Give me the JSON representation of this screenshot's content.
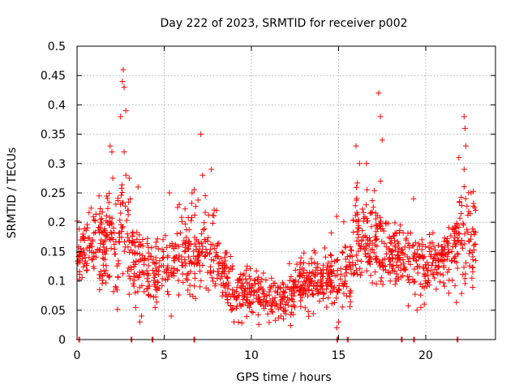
{
  "chart_data": {
    "type": "scatter",
    "title": "Day 222 of 2023, SRMTID for receiver p002",
    "xlabel": "GPS time / hours",
    "ylabel": "SRMTID / TECUs",
    "xlim": [
      0,
      24
    ],
    "ylim": [
      0,
      0.5
    ],
    "x_ticks": [
      0,
      5,
      10,
      15,
      20
    ],
    "x_tick_labels": [
      "0",
      "5",
      "10",
      "15",
      "20"
    ],
    "y_ticks": [
      0,
      0.05,
      0.1,
      0.15,
      0.2,
      0.25,
      0.3,
      0.35,
      0.4,
      0.45,
      0.5
    ],
    "y_tick_labels": [
      "0",
      "0.05",
      "0.1",
      "0.15",
      "0.2",
      "0.25",
      "0.3",
      "0.35",
      "0.4",
      "0.45",
      "0.5"
    ],
    "grid": true,
    "marker": "+",
    "marker_color": "#ff0000",
    "series": [
      {
        "name": "SRMTID",
        "envelope": {
          "hours": [
            0,
            0.5,
            1,
            1.5,
            2,
            2.5,
            3,
            3.5,
            4,
            4.5,
            5,
            5.5,
            6,
            6.5,
            7,
            7.5,
            8,
            8.5,
            9,
            9.5,
            10,
            10.5,
            11,
            11.5,
            12,
            12.5,
            13,
            13.5,
            14,
            14.5,
            15,
            15.5,
            16,
            16.5,
            17,
            17.5,
            18,
            18.5,
            19,
            19.5,
            20,
            20.5,
            21,
            21.5,
            22,
            22.5,
            23
          ],
          "center": [
            0.14,
            0.15,
            0.15,
            0.16,
            0.18,
            0.17,
            0.16,
            0.14,
            0.12,
            0.12,
            0.13,
            0.13,
            0.14,
            0.15,
            0.16,
            0.14,
            0.13,
            0.11,
            0.08,
            0.08,
            0.09,
            0.08,
            0.07,
            0.07,
            0.07,
            0.09,
            0.1,
            0.1,
            0.1,
            0.11,
            0.1,
            0.12,
            0.17,
            0.18,
            0.16,
            0.15,
            0.14,
            0.14,
            0.13,
            0.13,
            0.12,
            0.13,
            0.13,
            0.14,
            0.17,
            0.18,
            0.17
          ],
          "spread": [
            0.05,
            0.05,
            0.06,
            0.07,
            0.08,
            0.09,
            0.08,
            0.06,
            0.05,
            0.05,
            0.05,
            0.05,
            0.06,
            0.07,
            0.08,
            0.07,
            0.05,
            0.04,
            0.04,
            0.04,
            0.04,
            0.04,
            0.035,
            0.035,
            0.04,
            0.04,
            0.04,
            0.04,
            0.04,
            0.04,
            0.05,
            0.06,
            0.08,
            0.08,
            0.07,
            0.06,
            0.05,
            0.05,
            0.05,
            0.05,
            0.05,
            0.05,
            0.05,
            0.06,
            0.08,
            0.09,
            0.07
          ]
        },
        "peaks": [
          {
            "x": 1.9,
            "y": 0.33
          },
          {
            "x": 2.0,
            "y": 0.32
          },
          {
            "x": 2.5,
            "y": 0.38
          },
          {
            "x": 2.6,
            "y": 0.44
          },
          {
            "x": 2.65,
            "y": 0.46
          },
          {
            "x": 2.7,
            "y": 0.43
          },
          {
            "x": 2.8,
            "y": 0.39
          },
          {
            "x": 2.7,
            "y": 0.32
          },
          {
            "x": 2.8,
            "y": 0.28
          },
          {
            "x": 3.5,
            "y": 0.26
          },
          {
            "x": 5.3,
            "y": 0.25
          },
          {
            "x": 6.6,
            "y": 0.25
          },
          {
            "x": 7.1,
            "y": 0.35
          },
          {
            "x": 7.2,
            "y": 0.28
          },
          {
            "x": 7.7,
            "y": 0.29
          },
          {
            "x": 8.0,
            "y": 0.22
          },
          {
            "x": 14.9,
            "y": 0.21
          },
          {
            "x": 16.0,
            "y": 0.33
          },
          {
            "x": 16.2,
            "y": 0.3
          },
          {
            "x": 16.6,
            "y": 0.3
          },
          {
            "x": 17.3,
            "y": 0.42
          },
          {
            "x": 17.4,
            "y": 0.38
          },
          {
            "x": 17.5,
            "y": 0.34
          },
          {
            "x": 17.4,
            "y": 0.27
          },
          {
            "x": 19.3,
            "y": 0.24
          },
          {
            "x": 21.9,
            "y": 0.31
          },
          {
            "x": 22.2,
            "y": 0.38
          },
          {
            "x": 22.25,
            "y": 0.36
          },
          {
            "x": 22.3,
            "y": 0.33
          },
          {
            "x": 22.2,
            "y": 0.29
          },
          {
            "x": 22.6,
            "y": 0.25
          },
          {
            "x": 3.6,
            "y": 0.03
          },
          {
            "x": 3.7,
            "y": 0.04
          },
          {
            "x": 9.0,
            "y": 0.03
          },
          {
            "x": 14.9,
            "y": 0.02
          },
          {
            "x": 15.0,
            "y": 0.03
          },
          {
            "x": 19.5,
            "y": 0.05
          },
          {
            "x": 11.7,
            "y": 0.04
          },
          {
            "x": 5.4,
            "y": 0.04
          }
        ],
        "zeros": [
          0.1,
          3.1,
          4.3,
          6.7,
          14.9,
          15.5,
          18.6,
          19.3,
          21.8
        ]
      }
    ]
  }
}
